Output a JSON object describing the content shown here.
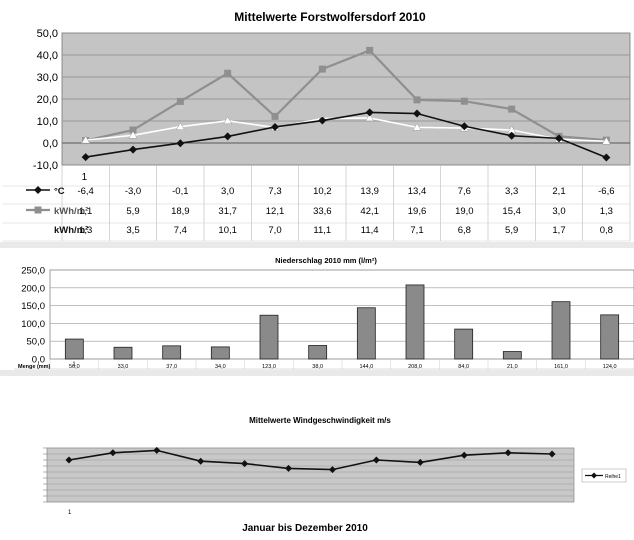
{
  "chart_data": [
    {
      "type": "line",
      "title": "Mittelwerte Forstwolfersdorf 2010",
      "categories": [
        "1",
        "",
        "",
        "",
        "",
        "",
        "",
        "",
        "",
        "",
        "",
        ""
      ],
      "ylim": [
        -10,
        50
      ],
      "yticks": [
        "50,0",
        "40,0",
        "30,0",
        "20,0",
        "10,0",
        "0,0",
        "-10,0"
      ],
      "grid": true,
      "colors": {
        "plot_bg": "#c4c4c4",
        "temp": "#111111",
        "rad1": "#8f8f8f",
        "rad2": "#ffffff"
      },
      "series": [
        {
          "name": "°C",
          "values": [
            -6.4,
            -3.0,
            -0.1,
            3.0,
            7.3,
            10.2,
            13.9,
            13.4,
            7.6,
            3.3,
            2.1,
            -6.6
          ],
          "labels": [
            "-6,4",
            "-3,0",
            "-0,1",
            "3,0",
            "7,3",
            "10,2",
            "13,9",
            "13,4",
            "7,6",
            "3,3",
            "2,1",
            "-6,6"
          ]
        },
        {
          "name": "kWh/m²",
          "values": [
            1.1,
            5.9,
            18.9,
            31.7,
            12.1,
            33.6,
            42.1,
            19.6,
            19.0,
            15.4,
            3.0,
            1.3
          ],
          "labels": [
            "1,1",
            "5,9",
            "18,9",
            "31,7",
            "12,1",
            "33,6",
            "42,1",
            "19,6",
            "19,0",
            "15,4",
            "3,0",
            "1,3"
          ]
        },
        {
          "name": "kWh/m²",
          "values": [
            1.3,
            3.5,
            7.4,
            10.1,
            7.0,
            11.1,
            11.4,
            7.1,
            6.8,
            5.9,
            1.7,
            0.8
          ],
          "labels": [
            "1,3",
            "3,5",
            "7,4",
            "10,1",
            "7,0",
            "11,1",
            "11,4",
            "7,1",
            "6,8",
            "5,9",
            "1,7",
            "0,8"
          ]
        }
      ]
    },
    {
      "type": "bar",
      "title": "Niederschlag 2010 mm (l/m²)",
      "categories": [
        "1",
        "",
        "",
        "",
        "",
        "",
        "",
        "",
        "",
        "",
        "",
        ""
      ],
      "ylim": [
        0,
        250
      ],
      "yticks": [
        "250,0",
        "200,0",
        "150,0",
        "100,0",
        "50,0",
        "0,0"
      ],
      "grid": true,
      "colors": {
        "plot_bg": "#ffffff",
        "bar": "#8a8a8a"
      },
      "series": [
        {
          "name": "Menge (mm)",
          "values": [
            56.0,
            33.0,
            37.0,
            34.0,
            123.0,
            38.0,
            144.0,
            208.0,
            84.0,
            21.0,
            161.0,
            124.0
          ],
          "labels": [
            "56,0",
            "33,0",
            "37,0",
            "34,0",
            "123,0",
            "38,0",
            "144,0",
            "208,0",
            "84,0",
            "21,0",
            "161,0",
            "124,0"
          ]
        }
      ]
    },
    {
      "type": "line",
      "title": "Mittelwerte Windgeschwindigkeit m/s",
      "subtitle": "Januar bis Dezember 2010",
      "categories": [
        "1",
        "",
        "",
        "",
        "",
        "",
        "",
        "",
        "",
        "",
        "",
        ""
      ],
      "ylim": [
        0,
        4.5
      ],
      "grid": true,
      "colors": {
        "plot_bg": "#c8c8c8",
        "line": "#111111"
      },
      "series": [
        {
          "name": "Reihe1",
          "values": [
            3.5,
            4.1,
            4.3,
            3.4,
            3.2,
            2.8,
            2.7,
            3.5,
            3.3,
            3.9,
            4.1,
            4.0
          ]
        }
      ]
    }
  ]
}
